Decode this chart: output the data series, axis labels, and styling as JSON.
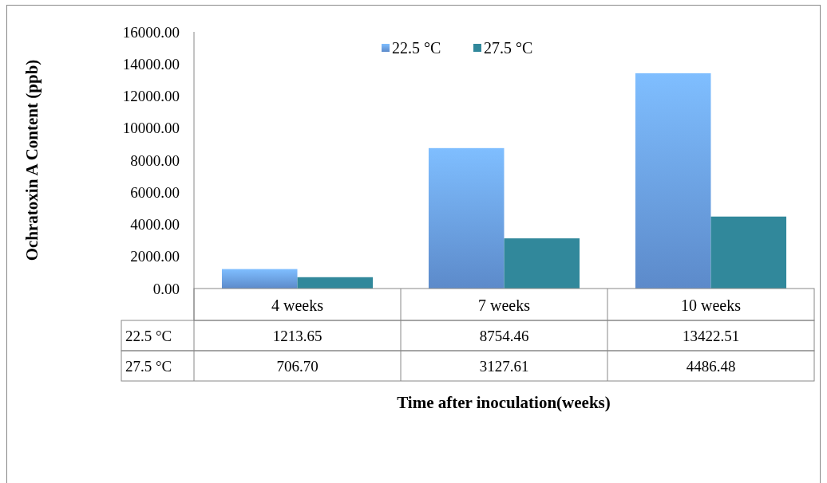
{
  "chart_data": {
    "type": "bar",
    "xlabel": "Time after inoculation(weeks)",
    "ylabel": "Ochratoxin A Content (ppb)",
    "categories": [
      "4 weeks",
      "7 weeks",
      "10 weeks"
    ],
    "series": [
      {
        "name": "22.5 °C",
        "color": "#6a9fe9",
        "values": [
          1213.65,
          8754.46,
          13422.51
        ],
        "value_labels": [
          "1213.65",
          "8754.46",
          "13422.51"
        ]
      },
      {
        "name": "27.5 °C",
        "color": "#31889b",
        "values": [
          706.7,
          3127.61,
          4486.48
        ],
        "value_labels": [
          "706.70",
          "3127.61",
          "4486.48"
        ]
      }
    ],
    "ylim": [
      0,
      16000
    ],
    "yticks": [
      {
        "value": 0,
        "label": "0.00"
      },
      {
        "value": 2000,
        "label": "2000.00"
      },
      {
        "value": 4000,
        "label": "4000.00"
      },
      {
        "value": 6000,
        "label": "6000.00"
      },
      {
        "value": 8000,
        "label": "8000.00"
      },
      {
        "value": 10000,
        "label": "10000.00"
      },
      {
        "value": 12000,
        "label": "12000.00"
      },
      {
        "value": 14000,
        "label": "14000.00"
      },
      {
        "value": 16000,
        "label": "16000.00"
      }
    ],
    "legend": "top",
    "grid": false
  }
}
